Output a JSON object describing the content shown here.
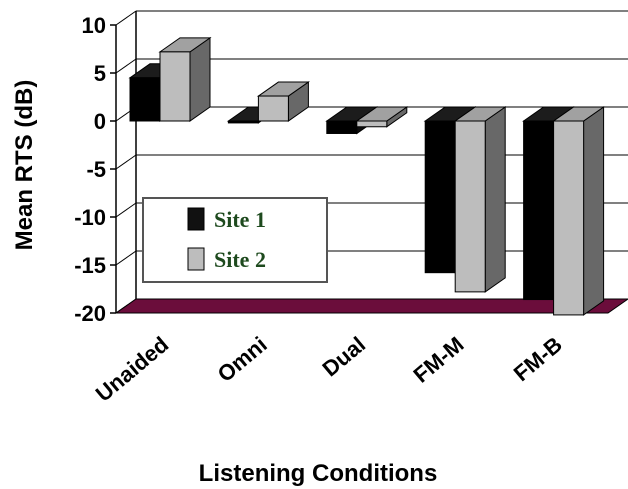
{
  "chart_data": {
    "type": "bar",
    "categories": [
      "Unaided",
      "Omni",
      "Dual",
      "FM-M",
      "FM-B"
    ],
    "series": [
      {
        "name": "Site 1",
        "values": [
          4.5,
          -0.2,
          -1.3,
          -15.8,
          -18.6
        ],
        "color": "#111111"
      },
      {
        "name": "Site 2",
        "values": [
          7.2,
          2.6,
          -0.6,
          -17.8,
          -20.2
        ],
        "color": "#bdbdbd"
      }
    ],
    "xlabel": "Listening Conditions",
    "ylabel": "Mean RTS (dB)",
    "ylim": [
      -20,
      10
    ],
    "yticks": [
      "10",
      "5",
      "0",
      "-5",
      "-10",
      "-15",
      "-20"
    ],
    "grid": true,
    "legend_placement": "left"
  },
  "colors": {
    "floor": "#6b0d3b",
    "gridline": "#000000"
  }
}
